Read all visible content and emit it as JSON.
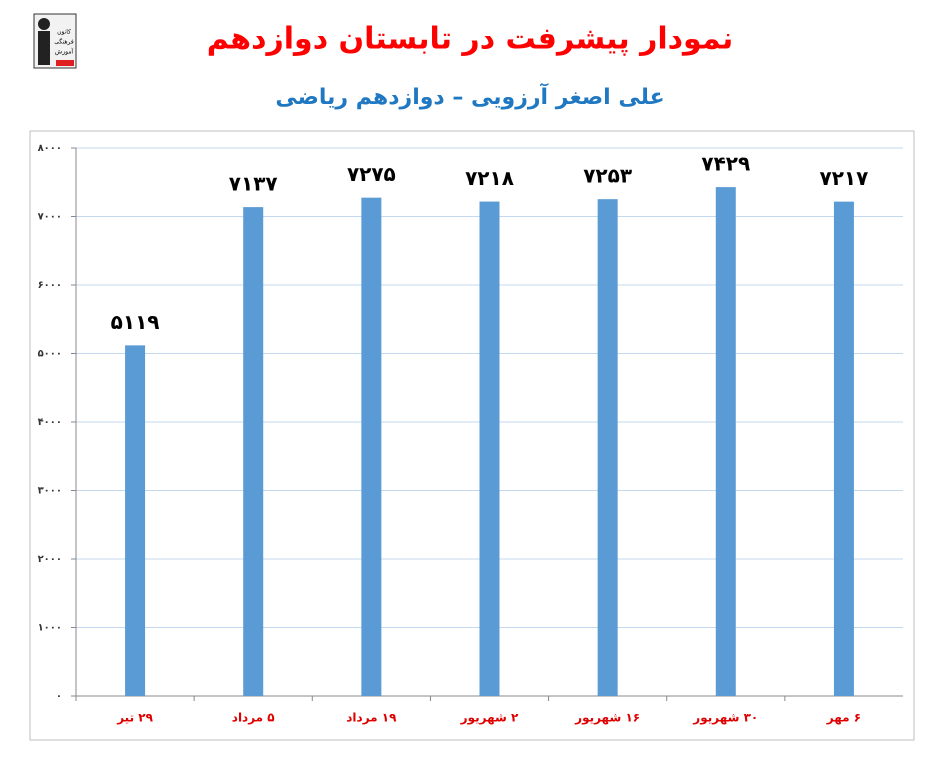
{
  "logo": {
    "lines": [
      "کانون",
      "فرهنگی",
      "آموزش"
    ]
  },
  "chart_data": {
    "type": "bar",
    "title": "نمودار پیشرفت در تابستان دوازدهم",
    "subtitle": "علی اصغر آرزویی – دوازدهم ریاضی",
    "categories": [
      "۲۹ تیر",
      "۵ مرداد",
      "۱۹ مرداد",
      "۲ شهریور",
      "۱۶ شهریور",
      "۳۰ شهریور",
      "۶ مهر"
    ],
    "values": [
      5119,
      7137,
      7275,
      7218,
      7253,
      7429,
      7217
    ],
    "value_labels": [
      "۵۱۱۹",
      "۷۱۳۷",
      "۷۲۷۵",
      "۷۲۱۸",
      "۷۲۵۳",
      "۷۴۲۹",
      "۷۲۱۷"
    ],
    "color": "#5b9bd5",
    "ylim": [
      0,
      8000
    ],
    "yticks": [
      {
        "value": 0,
        "label": "۰"
      },
      {
        "value": 1000,
        "label": "۱۰۰۰"
      },
      {
        "value": 2000,
        "label": "۲۰۰۰"
      },
      {
        "value": 3000,
        "label": "۳۰۰۰"
      },
      {
        "value": 4000,
        "label": "۴۰۰۰"
      },
      {
        "value": 5000,
        "label": "۵۰۰۰"
      },
      {
        "value": 6000,
        "label": "۶۰۰۰"
      },
      {
        "value": 7000,
        "label": "۷۰۰۰"
      },
      {
        "value": 8000,
        "label": "۸۰۰۰"
      }
    ],
    "grid": true
  }
}
